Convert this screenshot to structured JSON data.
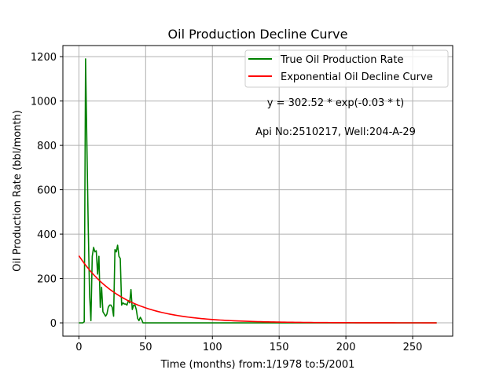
{
  "chart_data": {
    "type": "line",
    "title": "Oil Production Decline Curve",
    "xlabel": "Time (months) from:1/1978 to:5/2001",
    "ylabel": "Oil Production Rate (bbl/month)",
    "xlim": [
      -12,
      280
    ],
    "ylim": [
      -60,
      1250
    ],
    "xticks": [
      0,
      50,
      100,
      150,
      200,
      250
    ],
    "yticks": [
      0,
      200,
      400,
      600,
      800,
      1000,
      1200
    ],
    "grid": true,
    "legend_position": "top-right",
    "series": [
      {
        "name": "True Oil Production Rate",
        "color": "#008000",
        "x": [
          0,
          1,
          2,
          3,
          4,
          5,
          6,
          7,
          8,
          9,
          10,
          11,
          12,
          13,
          14,
          15,
          16,
          17,
          18,
          19,
          20,
          21,
          22,
          23,
          24,
          25,
          26,
          27,
          28,
          29,
          30,
          31,
          32,
          33,
          34,
          35,
          36,
          37,
          38,
          39,
          40,
          41,
          42,
          43,
          44,
          45,
          46,
          47,
          48,
          49,
          50,
          60,
          80,
          100,
          130,
          160,
          200,
          240,
          268
        ],
        "y": [
          0,
          0,
          0,
          0,
          5,
          1190,
          800,
          430,
          130,
          10,
          300,
          340,
          320,
          325,
          220,
          300,
          70,
          160,
          50,
          40,
          30,
          40,
          70,
          80,
          80,
          70,
          30,
          330,
          320,
          350,
          300,
          290,
          80,
          90,
          85,
          85,
          80,
          100,
          90,
          150,
          60,
          80,
          80,
          60,
          20,
          10,
          25,
          15,
          0,
          0,
          0,
          0,
          0,
          0,
          0,
          0,
          0,
          0,
          0
        ]
      },
      {
        "name": "Exponential Oil Decline Curve",
        "color": "#ff0000",
        "equation": {
          "a": 302.52,
          "b": 0.03
        },
        "x_range": [
          0,
          268
        ]
      }
    ],
    "annotations": [
      "y = 302.52 * exp(-0.03 * t)",
      "Api No:2510217, Well:204-A-29"
    ]
  }
}
